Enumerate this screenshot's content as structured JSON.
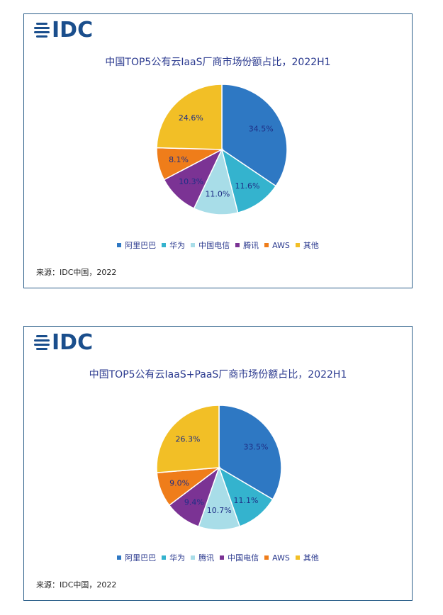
{
  "colors": {
    "alibaba": "#2e78c3",
    "huawei": "#34b3ce",
    "telecom": "#a8dde8",
    "tencent": "#7b3394",
    "aws": "#ef7d1a",
    "others": "#f2bf26"
  },
  "charts": [
    {
      "logo": "IDC",
      "title": "中国TOP5公有云IaaS厂商市场份额占比，2022H1",
      "source": "来源：IDC中国，2022",
      "legend": [
        {
          "label": "阿里巴巴",
          "color": "#2e78c3"
        },
        {
          "label": "华为",
          "color": "#34b3ce"
        },
        {
          "label": "中国电信",
          "color": "#a8dde8"
        },
        {
          "label": "腾讯",
          "color": "#7b3394"
        },
        {
          "label": "AWS",
          "color": "#ef7d1a"
        },
        {
          "label": "其他",
          "color": "#f2bf26"
        }
      ]
    },
    {
      "logo": "IDC",
      "title": "中国TOP5公有云IaaS+PaaS厂商市场份额占比，2022H1",
      "source": "来源：IDC中国，2022",
      "legend": [
        {
          "label": "阿里巴巴",
          "color": "#2e78c3"
        },
        {
          "label": "华为",
          "color": "#34b3ce"
        },
        {
          "label": "腾讯",
          "color": "#a8dde8"
        },
        {
          "label": "中国电信",
          "color": "#7b3394"
        },
        {
          "label": "AWS",
          "color": "#ef7d1a"
        },
        {
          "label": "其他",
          "color": "#f2bf26"
        }
      ]
    }
  ],
  "chart_data": [
    {
      "type": "pie",
      "title": "中国TOP5公有云IaaS厂商市场份额占比，2022H1",
      "categories": [
        "阿里巴巴",
        "华为",
        "中国电信",
        "腾讯",
        "AWS",
        "其他"
      ],
      "values": [
        34.5,
        11.6,
        11.0,
        10.3,
        8.1,
        24.6
      ],
      "value_labels": [
        "34.5%",
        "11.6%",
        "11.0%",
        "10.3%",
        "8.1%",
        "24.6%"
      ],
      "colors": [
        "#2e78c3",
        "#34b3ce",
        "#a8dde8",
        "#7b3394",
        "#ef7d1a",
        "#f2bf26"
      ],
      "legend_position": "bottom"
    },
    {
      "type": "pie",
      "title": "中国TOP5公有云IaaS+PaaS厂商市场份额占比，2022H1",
      "categories": [
        "阿里巴巴",
        "华为",
        "腾讯",
        "中国电信",
        "AWS",
        "其他"
      ],
      "values": [
        33.5,
        11.1,
        10.7,
        9.4,
        9.0,
        26.3
      ],
      "value_labels": [
        "33.5%",
        "11.1%",
        "10.7%",
        "9.4%",
        "9.0%",
        "26.3%"
      ],
      "colors": [
        "#2e78c3",
        "#34b3ce",
        "#a8dde8",
        "#7b3394",
        "#ef7d1a",
        "#f2bf26"
      ],
      "legend_position": "bottom"
    }
  ]
}
